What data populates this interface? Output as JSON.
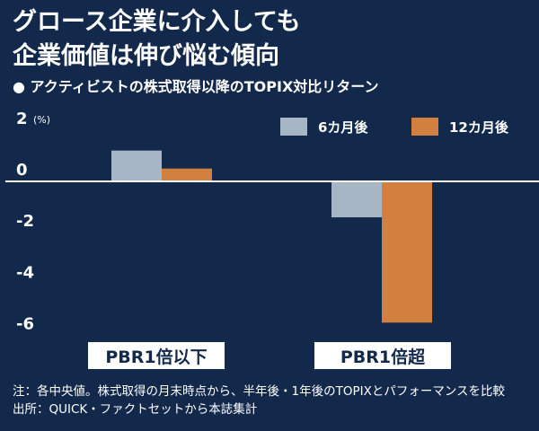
{
  "title_lines": [
    "グロース企業に介入しても",
    "企業価値は伸び悩む傾向"
  ],
  "subtitle": "● アクティビストの株式取得以降のTOPIX対比リターン",
  "notes": [
    "注：各中央値。株式取得の月末時点から、半年後・1年後のTOPIXとパフォーマンスを比較",
    "出所：QUICK・ファクトセットから本誌集計"
  ],
  "colors": {
    "background": "#13294B",
    "series_6m": "#A7B6C4",
    "series_12m": "#D1803F",
    "label_box": "#FFFFFF",
    "label_text": "#13294B"
  },
  "chart_data": {
    "type": "bar",
    "title": "アクティビストの株式取得以降のTOPIX対比リターン",
    "ylabel_unit": "(%)",
    "categories": [
      "PBR1倍以下",
      "PBR1倍超"
    ],
    "series": [
      {
        "name": "6カ月後",
        "values": [
          1.2,
          -1.4
        ]
      },
      {
        "name": "12カ月後",
        "values": [
          0.5,
          -5.5
        ]
      }
    ],
    "yticks": [
      {
        "value": 2,
        "label": "2"
      },
      {
        "value": 0,
        "label": "0"
      },
      {
        "value": -2,
        "label": "-2"
      },
      {
        "value": -4,
        "label": "-4"
      },
      {
        "value": -6,
        "label": "-6"
      }
    ],
    "ylim": [
      -6,
      2
    ],
    "legend_position": "top-right",
    "grid": false
  }
}
